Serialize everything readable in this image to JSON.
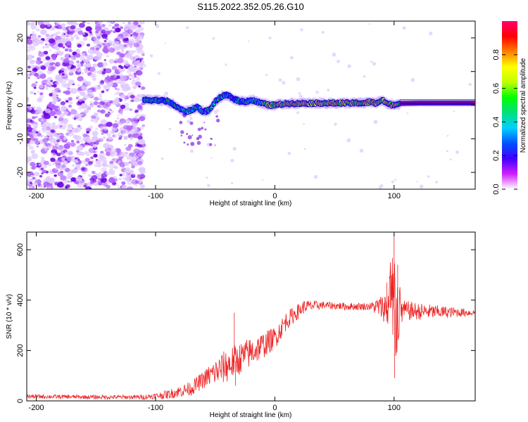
{
  "title": "S115.2022.352.05.26.G10",
  "chart_data": [
    {
      "type": "heatmap",
      "xlabel": "Height of straight line (km)",
      "ylabel": "Frequency (Hz)",
      "xlim": [
        -208,
        168
      ],
      "ylim": [
        -25,
        25
      ],
      "xticks": [
        -200,
        -100,
        0,
        100
      ],
      "xtick_labels": [
        "-200",
        "-100",
        "0",
        "100"
      ],
      "yticks": [
        -20,
        -10,
        0,
        10,
        20
      ],
      "ytick_labels": [
        "-20",
        "-10",
        "0",
        "10",
        "20"
      ],
      "colorbar": {
        "label": "Normalized spectral amplitude",
        "range": [
          0,
          1
        ],
        "ticks": [
          0,
          0.2,
          0.4,
          0.6,
          0.8
        ],
        "tick_labels": [
          "0.0",
          "0.2",
          "0.4",
          "0.6",
          "0.8"
        ],
        "colors": [
          "#ffffff",
          "#d020ff",
          "#4000ff",
          "#0050ff",
          "#00d0ff",
          "#00e080",
          "#00ff00",
          "#c0ff00",
          "#ffff00",
          "#ff8000",
          "#ff0000",
          "#ff0070"
        ]
      },
      "ridge": {
        "description_points_x": [
          -110,
          -100,
          -90,
          -80,
          -75,
          -70,
          -65,
          -60,
          -55,
          -50,
          -45,
          -40,
          -35,
          -30,
          -25,
          -20,
          -15,
          -10,
          -5,
          0,
          10,
          20,
          40,
          60,
          75,
          80,
          85,
          90,
          95,
          100,
          105,
          120,
          168
        ],
        "description_points_y": [
          1.5,
          1.5,
          1.2,
          -1,
          -2,
          -1.5,
          -0.5,
          -2,
          -1.5,
          1,
          2.5,
          3,
          2,
          1.2,
          1,
          1.5,
          1,
          0.5,
          0,
          0,
          0.5,
          0.5,
          0.6,
          0.6,
          0.6,
          1,
          0.5,
          1.5,
          0.3,
          0,
          0.5,
          0.6,
          0.6
        ]
      },
      "noise_region_x": [
        -208,
        -110
      ]
    },
    {
      "type": "line",
      "xlabel": "Height of straight line (km)",
      "ylabel": "SNR (10 * v/v)",
      "xlim": [
        -208,
        168
      ],
      "ylim": [
        0,
        670
      ],
      "xticks": [
        -200,
        -100,
        0,
        100
      ],
      "xtick_labels": [
        "-200",
        "-100",
        "0",
        "100"
      ],
      "yticks": [
        0,
        200,
        400,
        600
      ],
      "ytick_labels": [
        "0",
        "200",
        "400",
        "600"
      ],
      "color": "#ee2222",
      "baseline_x": [
        -208,
        -150,
        -110,
        -90,
        -70,
        -55,
        -40,
        -25,
        -10,
        0,
        10,
        25,
        40,
        60,
        80,
        95,
        105,
        120,
        168
      ],
      "baseline_y": [
        18,
        15,
        15,
        25,
        50,
        100,
        140,
        180,
        220,
        250,
        320,
        375,
        380,
        375,
        375,
        370,
        360,
        355,
        350
      ],
      "noise_x": [
        -208,
        -120,
        -100,
        -60,
        -40,
        -20,
        0,
        40,
        80,
        92,
        100,
        108,
        168
      ],
      "noise_amp": [
        8,
        8,
        12,
        35,
        70,
        60,
        45,
        15,
        15,
        60,
        200,
        40,
        12
      ]
    }
  ]
}
